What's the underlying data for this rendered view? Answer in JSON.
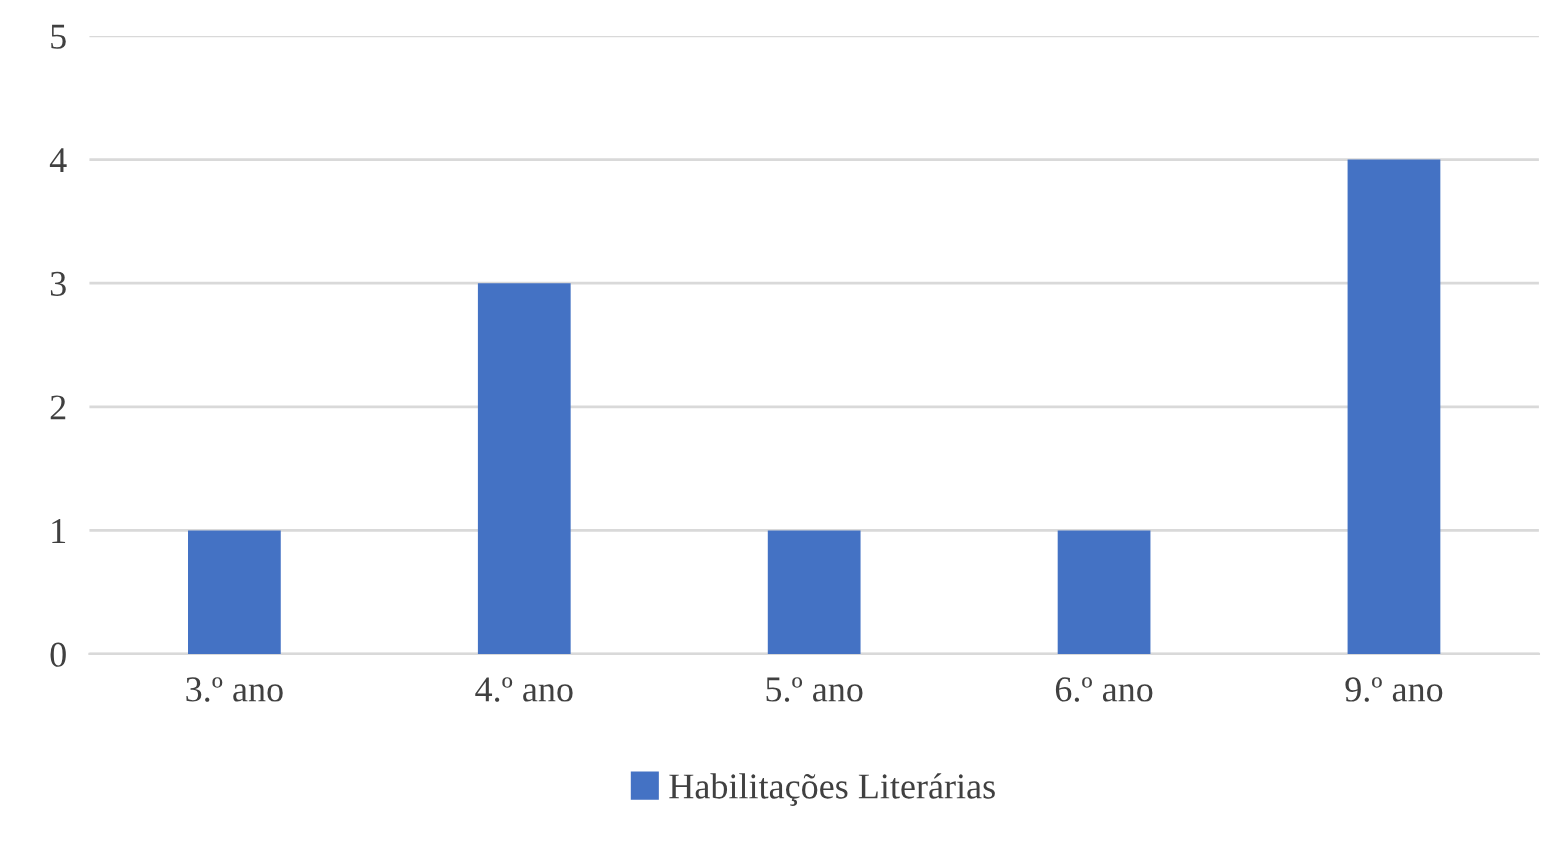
{
  "chart_data": {
    "type": "bar",
    "categories": [
      "3.º ano",
      "4.º ano",
      "5.º ano",
      "6.º ano",
      "9.º ano"
    ],
    "series": [
      {
        "name": "Habilitações Literárias",
        "color": "#4472c4",
        "values": [
          1,
          3,
          1,
          1,
          4
        ]
      }
    ],
    "ylim": [
      0,
      5
    ],
    "yticks": [
      0,
      1,
      2,
      3,
      4,
      5
    ],
    "grid": "y",
    "legend": "bottom"
  }
}
